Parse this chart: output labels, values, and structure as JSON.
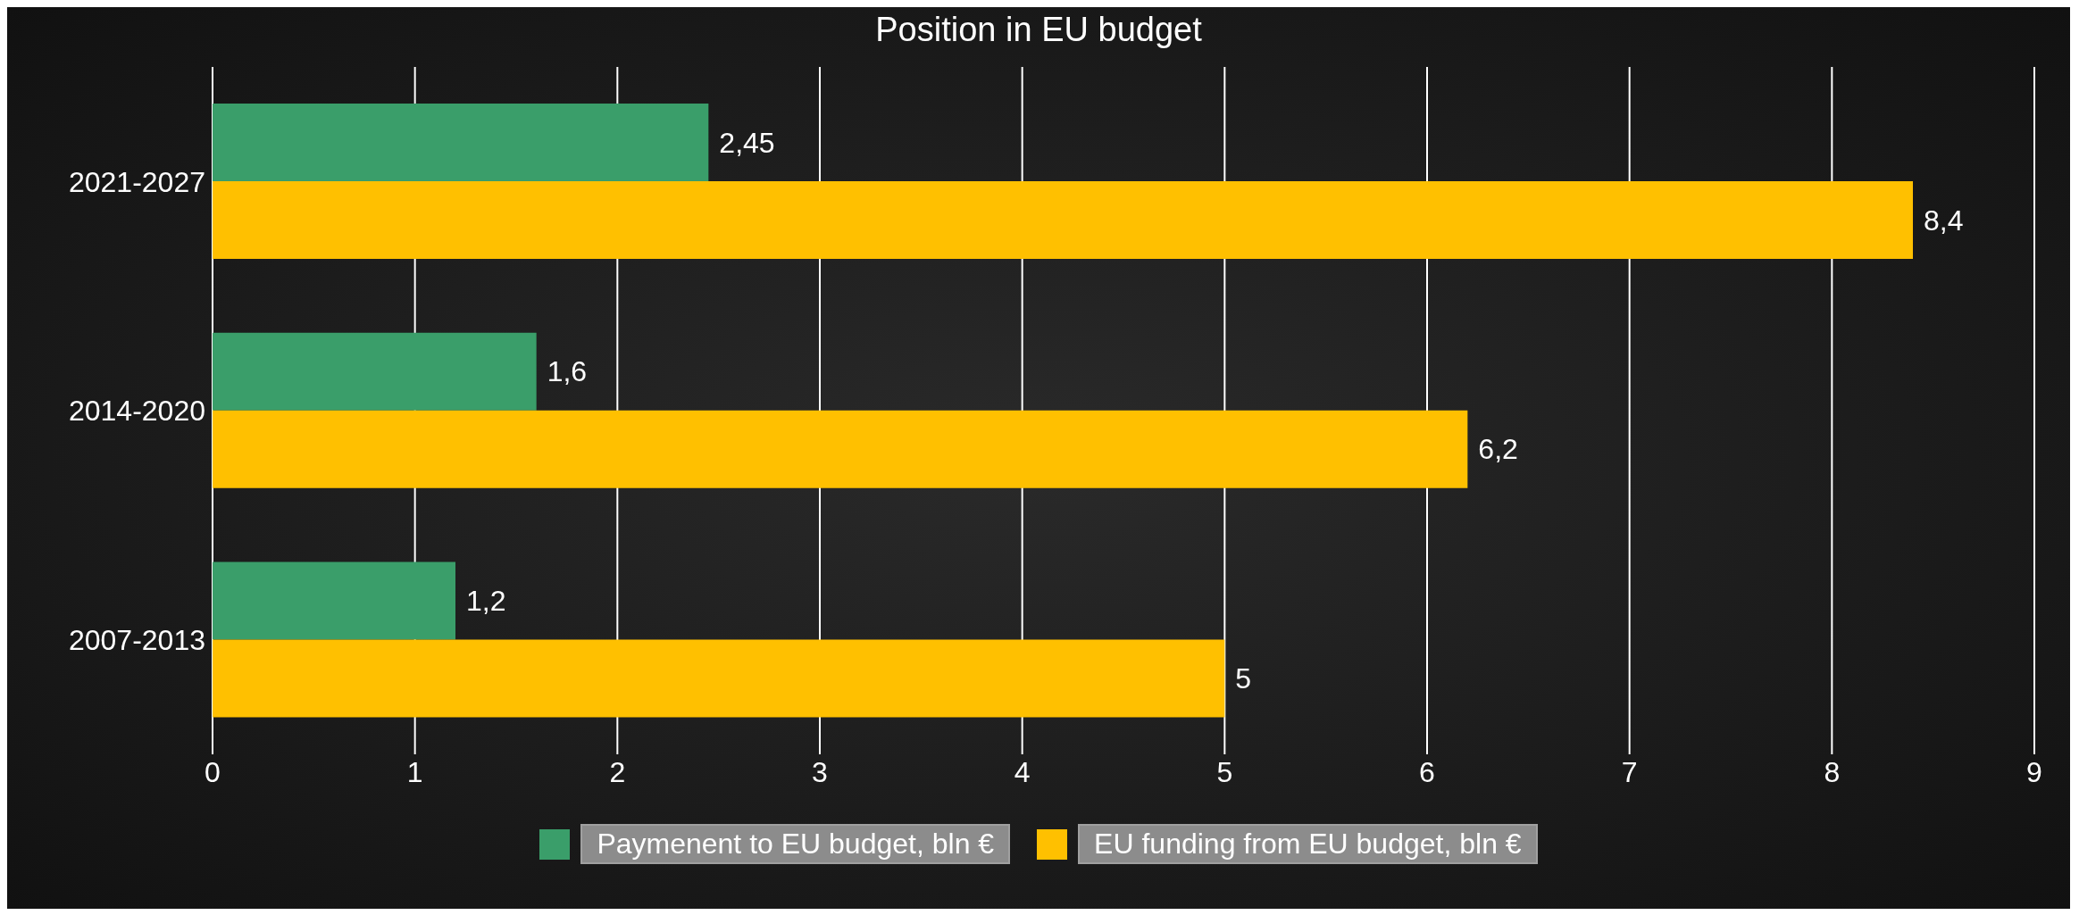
{
  "chart_data": {
    "type": "bar",
    "orientation": "horizontal",
    "title": "Position in EU budget",
    "categories": [
      "2021-2027",
      "2014-2020",
      "2007-2013"
    ],
    "series": [
      {
        "name": "Paymenent to EU budget, bln €",
        "color": "#3a9e6a",
        "values": [
          2.45,
          1.6,
          1.2
        ],
        "value_labels": [
          "2,45",
          "1,6",
          "1,2"
        ]
      },
      {
        "name": "EU funding from EU budget, bln €",
        "color": "#ffc000",
        "values": [
          8.4,
          6.2,
          5
        ],
        "value_labels": [
          "8,4",
          "6,2",
          "5"
        ]
      }
    ],
    "xlim": [
      0,
      9
    ],
    "xticks": [
      0,
      1,
      2,
      3,
      4,
      5,
      6,
      7,
      8,
      9
    ],
    "grid": "x",
    "legend": "bottom"
  }
}
